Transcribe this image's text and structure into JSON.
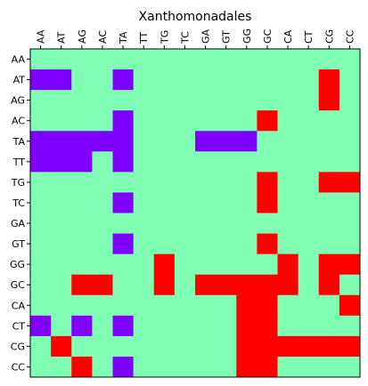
{
  "chart_data": {
    "type": "heatmap",
    "title": "Xanthomonadales",
    "xlabel": "",
    "ylabel": "",
    "x_labels": [
      "AA",
      "AT",
      "AG",
      "AC",
      "TA",
      "TT",
      "TG",
      "TC",
      "GA",
      "GT",
      "GG",
      "GC",
      "CA",
      "CT",
      "CG",
      "CC"
    ],
    "y_labels": [
      "AA",
      "AT",
      "AG",
      "AC",
      "TA",
      "TT",
      "TG",
      "TC",
      "GA",
      "GT",
      "GG",
      "GC",
      "CA",
      "CT",
      "CG",
      "CC"
    ],
    "x_axis_position": "top",
    "grid": false,
    "categories_legend": [
      {
        "value": 0,
        "color": "#8000ff"
      },
      {
        "value": 1,
        "color": "#80ffb4"
      },
      {
        "value": 2,
        "color": "#ff0000"
      }
    ],
    "matrix": [
      [
        1,
        1,
        1,
        1,
        1,
        1,
        1,
        1,
        1,
        1,
        1,
        1,
        1,
        1,
        1,
        1
      ],
      [
        0,
        0,
        1,
        1,
        0,
        1,
        1,
        1,
        1,
        1,
        1,
        1,
        1,
        1,
        2,
        1
      ],
      [
        1,
        1,
        1,
        1,
        1,
        1,
        1,
        1,
        1,
        1,
        1,
        1,
        1,
        1,
        2,
        1
      ],
      [
        1,
        1,
        1,
        1,
        0,
        1,
        1,
        1,
        1,
        1,
        1,
        2,
        1,
        1,
        1,
        1
      ],
      [
        0,
        0,
        0,
        0,
        0,
        1,
        1,
        1,
        0,
        0,
        0,
        1,
        1,
        1,
        1,
        1
      ],
      [
        0,
        0,
        0,
        1,
        0,
        1,
        1,
        1,
        1,
        1,
        1,
        1,
        1,
        1,
        1,
        1
      ],
      [
        1,
        1,
        1,
        1,
        1,
        1,
        1,
        1,
        1,
        1,
        1,
        2,
        1,
        1,
        2,
        2
      ],
      [
        1,
        1,
        1,
        1,
        0,
        1,
        1,
        1,
        1,
        1,
        1,
        2,
        1,
        1,
        1,
        1
      ],
      [
        1,
        1,
        1,
        1,
        1,
        1,
        1,
        1,
        1,
        1,
        1,
        1,
        1,
        1,
        1,
        1
      ],
      [
        1,
        1,
        1,
        1,
        0,
        1,
        1,
        1,
        1,
        1,
        1,
        2,
        1,
        1,
        1,
        1
      ],
      [
        1,
        1,
        1,
        1,
        1,
        1,
        2,
        1,
        1,
        1,
        1,
        1,
        2,
        1,
        2,
        2
      ],
      [
        1,
        1,
        2,
        2,
        1,
        1,
        2,
        1,
        2,
        2,
        2,
        2,
        2,
        1,
        2,
        1
      ],
      [
        1,
        1,
        1,
        1,
        1,
        1,
        1,
        1,
        1,
        1,
        2,
        2,
        1,
        1,
        1,
        2
      ],
      [
        0,
        1,
        0,
        1,
        0,
        1,
        1,
        1,
        1,
        1,
        2,
        2,
        1,
        1,
        1,
        1
      ],
      [
        1,
        2,
        1,
        1,
        1,
        1,
        1,
        1,
        1,
        1,
        2,
        2,
        2,
        2,
        2,
        2
      ],
      [
        1,
        1,
        2,
        1,
        0,
        1,
        1,
        1,
        1,
        1,
        2,
        2,
        1,
        1,
        1,
        1
      ]
    ]
  }
}
